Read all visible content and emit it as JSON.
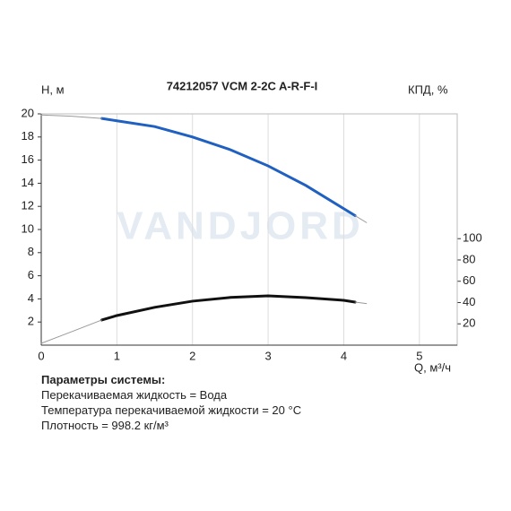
{
  "chart_data": {
    "type": "line",
    "title": "74212057 VCM 2-2C A-R-F-I",
    "ylabel": "Н, м",
    "y2label": "КПД, %",
    "xlabel": "Q, м³/ч",
    "watermark": "VANDJORD",
    "xlim": [
      0,
      5.5
    ],
    "xticks": [
      0,
      1,
      2,
      3,
      4,
      5
    ],
    "ylim": [
      0,
      20
    ],
    "yticks": [
      2,
      4,
      6,
      8,
      10,
      12,
      14,
      16,
      18,
      20
    ],
    "y2lim": [
      0,
      217.2
    ],
    "y2ticks": [
      20,
      40,
      60,
      80,
      100
    ],
    "grid": true,
    "series": [
      {
        "color": "#2060c0",
        "width": 3,
        "x": [
          0.8,
          1,
          1.5,
          2,
          2.5,
          3,
          3.5,
          4,
          4.15
        ],
        "values": [
          19.6,
          19.4,
          18.9,
          18.0,
          16.9,
          15.5,
          13.8,
          11.8,
          11.2
        ]
      },
      {
        "color": "#999999",
        "width": 1,
        "x": [
          0,
          0.4,
          0.8
        ],
        "values": [
          19.9,
          19.8,
          19.6
        ]
      },
      {
        "color": "#999999",
        "width": 1,
        "x": [
          4.15,
          4.3
        ],
        "values": [
          11.2,
          10.6
        ]
      },
      {
        "color": "#111111",
        "width": 3,
        "axis": "y2",
        "x": [
          0.8,
          1,
          1.5,
          2,
          2.5,
          3,
          3.5,
          4,
          4.15
        ],
        "values": [
          23.6,
          27.8,
          35.5,
          41.3,
          44.8,
          46.3,
          44.6,
          42.1,
          40.4
        ]
      },
      {
        "color": "#999999",
        "width": 1,
        "axis": "y2",
        "x": [
          0,
          0.4,
          0.8
        ],
        "values": [
          1.7,
          12.6,
          23.6
        ]
      },
      {
        "color": "#999999",
        "width": 1,
        "axis": "y2",
        "x": [
          4.15,
          4.3
        ],
        "values": [
          40.4,
          39
        ]
      }
    ]
  },
  "info": {
    "heading": "Параметры системы:",
    "lines": [
      "Перекачиваемая жидкость = Вода",
      "Температура перекачиваемой жидкости = 20 °C",
      "Плотность = 998.2 кг/м³"
    ]
  }
}
